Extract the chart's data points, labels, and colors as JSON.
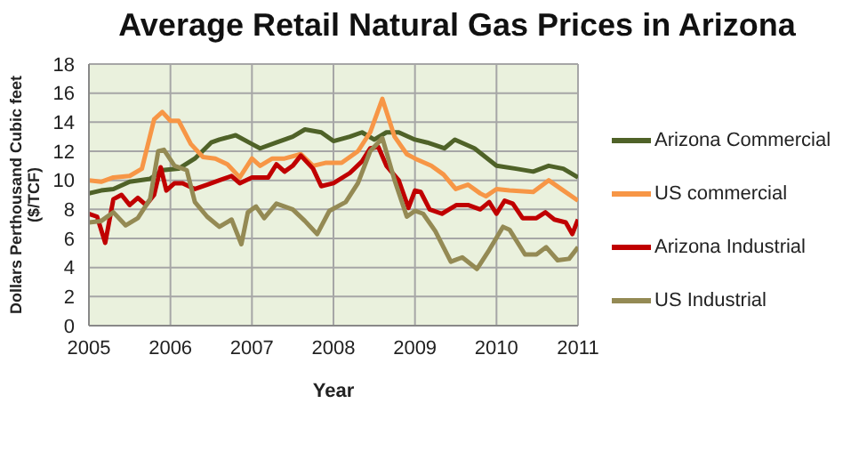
{
  "chart_data": {
    "type": "line",
    "title": "Average Retail Natural Gas Prices in Arizona",
    "xlabel": "Year",
    "ylabel": "Dollars Perthousand  Cubic feet ($/TCF)",
    "xlim": [
      2005,
      2011
    ],
    "xticks": [
      2005,
      2006,
      2007,
      2008,
      2009,
      2010,
      2011
    ],
    "ylim": [
      0,
      18
    ],
    "yticks": [
      0,
      2,
      4,
      6,
      8,
      10,
      12,
      14,
      16,
      18
    ],
    "grid": true,
    "legend": "right",
    "marker": "none",
    "line_style": "solid",
    "series": [
      {
        "name": "Arizona Commercial",
        "color": "#4f6228",
        "x": [
          2005,
          2005.15,
          2005.3,
          2005.5,
          2005.75,
          2005.9,
          2006.1,
          2006.3,
          2006.5,
          2006.6,
          2006.8,
          2007,
          2007.1,
          2007.3,
          2007.5,
          2007.65,
          2007.85,
          2008,
          2008.2,
          2008.35,
          2008.5,
          2008.65,
          2008.8,
          2009,
          2009.15,
          2009.36,
          2009.49,
          2009.73,
          2010,
          2010.24,
          2010.45,
          2010.64,
          2010.82,
          2011
        ],
        "values": [
          9.1,
          9.3,
          9.4,
          9.9,
          10.1,
          10.7,
          10.8,
          11.5,
          12.6,
          12.8,
          13.1,
          12.5,
          12.2,
          12.6,
          13,
          13.5,
          13.3,
          12.7,
          13,
          13.3,
          12.8,
          13.3,
          13.3,
          12.8,
          12.6,
          12.2,
          12.8,
          12.2,
          11,
          10.8,
          10.6,
          11,
          10.8,
          10.2
        ]
      },
      {
        "name": "US commercial",
        "color": "#f79646",
        "x": [
          2005,
          2005.15,
          2005.3,
          2005.5,
          2005.65,
          2005.8,
          2005.9,
          2006,
          2006.1,
          2006.25,
          2006.4,
          2006.55,
          2006.7,
          2006.85,
          2007,
          2007.1,
          2007.25,
          2007.4,
          2007.6,
          2007.75,
          2007.9,
          2008.1,
          2008.3,
          2008.45,
          2008.6,
          2008.75,
          2008.9,
          2009,
          2009.2,
          2009.35,
          2009.5,
          2009.65,
          2009.8,
          2009.87,
          2010,
          2010.16,
          2010.45,
          2010.64,
          2010.82,
          2011
        ],
        "values": [
          10,
          9.9,
          10.2,
          10.3,
          10.8,
          14.2,
          14.7,
          14.1,
          14.1,
          12.5,
          11.6,
          11.5,
          11.1,
          10.2,
          11.5,
          11,
          11.5,
          11.5,
          11.8,
          11,
          11.2,
          11.2,
          12,
          13.3,
          15.6,
          13,
          11.8,
          11.5,
          11,
          10.4,
          9.4,
          9.7,
          9.1,
          8.9,
          9.4,
          9.3,
          9.2,
          10,
          9.3,
          8.6
        ]
      },
      {
        "name": "Arizona Industrial",
        "color": "#c00000",
        "x": [
          2005,
          2005.1,
          2005.2,
          2005.3,
          2005.4,
          2005.5,
          2005.6,
          2005.7,
          2005.8,
          2005.88,
          2005.95,
          2006.05,
          2006.15,
          2006.3,
          2006.45,
          2006.6,
          2006.75,
          2006.85,
          2007,
          2007.2,
          2007.3,
          2007.4,
          2007.5,
          2007.6,
          2007.75,
          2007.85,
          2008,
          2008.2,
          2008.35,
          2008.45,
          2008.55,
          2008.65,
          2008.8,
          2008.92,
          2009,
          2009.07,
          2009.18,
          2009.33,
          2009.51,
          2009.65,
          2009.8,
          2009.91,
          2010,
          2010.1,
          2010.2,
          2010.32,
          2010.49,
          2010.6,
          2010.71,
          2010.85,
          2010.93,
          2011
        ],
        "values": [
          7.7,
          7.5,
          5.7,
          8.7,
          9,
          8.3,
          8.8,
          8.3,
          9,
          10.9,
          9.3,
          9.8,
          9.8,
          9.4,
          9.7,
          10,
          10.3,
          9.8,
          10.2,
          10.2,
          11.1,
          10.6,
          11,
          11.7,
          10.8,
          9.6,
          9.8,
          10.5,
          11.3,
          12.2,
          12.3,
          11,
          10,
          8.1,
          9.3,
          9.2,
          8,
          7.7,
          8.3,
          8.3,
          8,
          8.5,
          7.7,
          8.6,
          8.4,
          7.4,
          7.4,
          7.8,
          7.3,
          7.1,
          6.3,
          7.3
        ]
      },
      {
        "name": "US Industrial",
        "color": "#948a54",
        "x": [
          2005,
          2005.15,
          2005.3,
          2005.45,
          2005.6,
          2005.75,
          2005.85,
          2005.92,
          2006.05,
          2006.2,
          2006.3,
          2006.45,
          2006.6,
          2006.75,
          2006.87,
          2006.95,
          2007.05,
          2007.15,
          2007.3,
          2007.5,
          2007.65,
          2007.8,
          2007.95,
          2008.15,
          2008.3,
          2008.45,
          2008.6,
          2008.75,
          2008.9,
          2009,
          2009.1,
          2009.25,
          2009.44,
          2009.58,
          2009.76,
          2009.91,
          2010.08,
          2010.16,
          2010.35,
          2010.49,
          2010.61,
          2010.75,
          2010.89,
          2011
        ],
        "values": [
          7.1,
          7.2,
          7.8,
          6.9,
          7.4,
          8.7,
          12,
          12.1,
          11,
          10.7,
          8.5,
          7.5,
          6.8,
          7.3,
          5.6,
          7.8,
          8.2,
          7.4,
          8.4,
          8,
          7.2,
          6.3,
          7.9,
          8.5,
          9.8,
          12,
          12.9,
          10,
          7.5,
          7.9,
          7.7,
          6.5,
          4.4,
          4.7,
          3.9,
          5.2,
          6.8,
          6.6,
          4.9,
          4.9,
          5.4,
          4.5,
          4.6,
          5.4
        ]
      }
    ]
  }
}
